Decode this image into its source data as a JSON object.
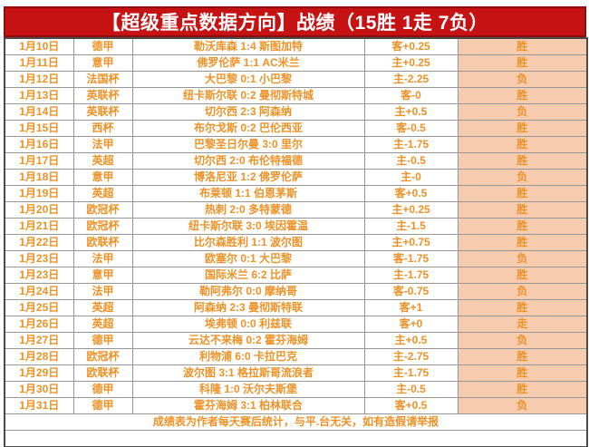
{
  "title": "【超级重点数据方向】战绩（15胜 1走 7负）",
  "record_summary": {
    "wins": 15,
    "pushes": 1,
    "losses": 7
  },
  "footer": "成绩表为作者每天赛后统计，与平.台无关，如有造假请举报",
  "empty_note": "",
  "colors": {
    "banner_background": "#c61212",
    "banner_text": "#ffffff",
    "table_text_orange": "#ee9227",
    "result_column_background": "#f6cbae",
    "win_text": "#e8281e",
    "loss_text": "#0a0a0a",
    "push_text": "#7030a0"
  },
  "rows": [
    {
      "date": "1月10日",
      "league": "德甲",
      "match": "勒沃库森 1:4 斯图加特",
      "handicap": "客+0.25",
      "result": "胜",
      "outcome": "win"
    },
    {
      "date": "1月11日",
      "league": "意甲",
      "match": "佛罗伦萨 1:1 AC米兰",
      "handicap": "主+0.25",
      "result": "胜",
      "outcome": "win"
    },
    {
      "date": "1月12日",
      "league": "法国杯",
      "match": "大巴黎 0:1 小巴黎",
      "handicap": "主-2.25",
      "result": "负",
      "outcome": "loss"
    },
    {
      "date": "1月13日",
      "league": "英联杯",
      "match": "纽卡斯尔联 0:2 曼彻斯特城",
      "handicap": "客-0",
      "result": "胜",
      "outcome": "win"
    },
    {
      "date": "1月14日",
      "league": "英联杯",
      "match": "切尔西 2:3 阿森纳",
      "handicap": "主+0.5",
      "result": "负",
      "outcome": "loss"
    },
    {
      "date": "1月15日",
      "league": "西杯",
      "match": "布尔戈斯 0:2 巴伦西亚",
      "handicap": "客-0.5",
      "result": "胜",
      "outcome": "win"
    },
    {
      "date": "1月16日",
      "league": "法甲",
      "match": "巴黎圣日尔曼 3:0 里尔",
      "handicap": "主-1.75",
      "result": "胜",
      "outcome": "win"
    },
    {
      "date": "1月17日",
      "league": "英超",
      "match": "切尔西 2:0 布伦特福德",
      "handicap": "主-0.5",
      "result": "胜",
      "outcome": "win"
    },
    {
      "date": "1月18日",
      "league": "意甲",
      "match": "博洛尼亚 1:2 佛罗伦萨",
      "handicap": "主-0",
      "result": "负",
      "outcome": "loss"
    },
    {
      "date": "1月19日",
      "league": "英超",
      "match": "布莱顿 1:1 伯恩茅斯",
      "handicap": "客+0.5",
      "result": "胜",
      "outcome": "win"
    },
    {
      "date": "1月20日",
      "league": "欧冠杯",
      "match": "热刺 2:0 多特蒙德",
      "handicap": "主+0.25",
      "result": "胜",
      "outcome": "win"
    },
    {
      "date": "1月21日",
      "league": "欧冠杯",
      "match": "纽卡斯尔联 3:0 埃因霍温",
      "handicap": "主-1.5",
      "result": "胜",
      "outcome": "win"
    },
    {
      "date": "1月22日",
      "league": "欧联杯",
      "match": "比尔森胜利 1:1 波尔图",
      "handicap": "主+0.75",
      "result": "胜",
      "outcome": "win"
    },
    {
      "date": "1月23日",
      "league": "法甲",
      "match": "欧塞尔 0:1 大巴黎",
      "handicap": "客-1.75",
      "result": "负",
      "outcome": "loss"
    },
    {
      "date": "1月23日",
      "league": "意甲",
      "match": "国际米兰 6:2 比萨",
      "handicap": "主-1.75",
      "result": "胜",
      "outcome": "win"
    },
    {
      "date": "1月24日",
      "league": "法甲",
      "match": "勒阿弗尔 0:0 摩纳哥",
      "handicap": "客-0.75",
      "result": "负",
      "outcome": "loss"
    },
    {
      "date": "1月25日",
      "league": "英超",
      "match": "阿森纳 2:3 曼彻斯特联",
      "handicap": "客+1",
      "result": "胜",
      "outcome": "win"
    },
    {
      "date": "1月26日",
      "league": "英超",
      "match": "埃弗顿 0:0 利兹联",
      "handicap": "客+0",
      "result": "走",
      "outcome": "push"
    },
    {
      "date": "1月27日",
      "league": "德甲",
      "match": "云达不来梅 0:2 霍芬海姆",
      "handicap": "主+0.5",
      "result": "负",
      "outcome": "loss"
    },
    {
      "date": "1月28日",
      "league": "欧冠杯",
      "match": "利物浦 6:0 卡拉巴克",
      "handicap": "主-2.75",
      "result": "胜",
      "outcome": "win"
    },
    {
      "date": "1月29日",
      "league": "欧联杯",
      "match": "波尔图 3:1 格拉斯哥流浪者",
      "handicap": "主-1.75",
      "result": "胜",
      "outcome": "win"
    },
    {
      "date": "1月30日",
      "league": "德甲",
      "match": "科隆 1:0 沃尔夫斯堡",
      "handicap": "主-0.5",
      "result": "胜",
      "outcome": "win"
    },
    {
      "date": "1月31日",
      "league": "德甲",
      "match": "霍芬海姆 3:1 柏林联合",
      "handicap": "客+0.5",
      "result": "负",
      "outcome": "loss"
    }
  ]
}
